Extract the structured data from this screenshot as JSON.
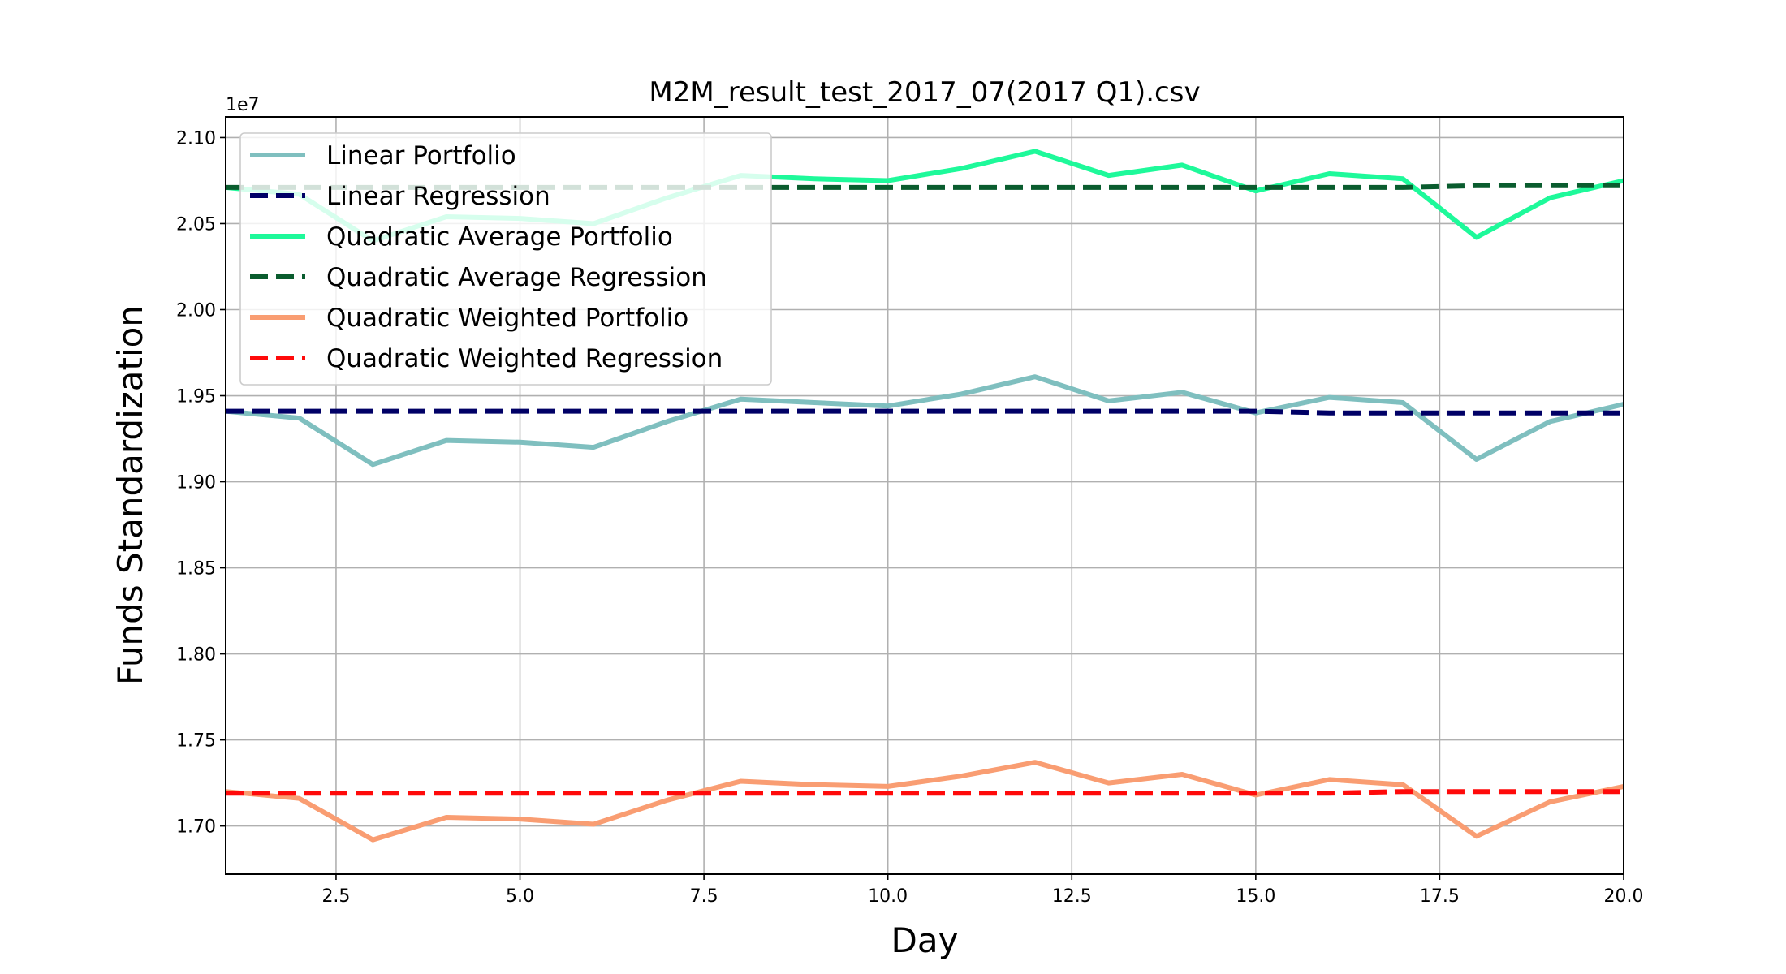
{
  "chart_data": {
    "type": "line",
    "title": "M2M_result_test_2017_07(2017 Q1).csv",
    "xlabel": "Day",
    "ylabel": "Funds Standardization",
    "y_offset_label": "1e7",
    "xlim": [
      1,
      20
    ],
    "ylim": [
      16.72,
      21.12
    ],
    "x_ticks": [
      2.5,
      5.0,
      7.5,
      10.0,
      12.5,
      15.0,
      17.5,
      20.0
    ],
    "x_tick_labels": [
      "2.5",
      "5.0",
      "7.5",
      "10.0",
      "12.5",
      "15.0",
      "17.5",
      "20.0"
    ],
    "y_ticks": [
      17.0,
      17.5,
      18.0,
      18.5,
      19.0,
      19.5,
      20.0,
      20.5,
      21.0
    ],
    "y_tick_labels": [
      "1.70",
      "1.75",
      "1.80",
      "1.85",
      "1.90",
      "1.95",
      "2.00",
      "2.05",
      "2.10"
    ],
    "grid": true,
    "legend_position": "top-left",
    "x": [
      1,
      2,
      3,
      4,
      5,
      6,
      7,
      8,
      9,
      10,
      11,
      12,
      13,
      14,
      15,
      16,
      17,
      18,
      19,
      20
    ],
    "series": [
      {
        "name": "Linear Portfolio",
        "style": "solid",
        "color": "#7fbfbf",
        "values": [
          19.41,
          19.37,
          19.1,
          19.24,
          19.23,
          19.2,
          19.35,
          19.48,
          19.46,
          19.44,
          19.51,
          19.61,
          19.47,
          19.52,
          19.4,
          19.49,
          19.46,
          19.13,
          19.35,
          19.45
        ]
      },
      {
        "name": "Linear Regression",
        "style": "dashed",
        "color": "#000066",
        "values": [
          19.41,
          19.41,
          19.41,
          19.41,
          19.41,
          19.41,
          19.41,
          19.41,
          19.41,
          19.41,
          19.41,
          19.41,
          19.41,
          19.41,
          19.41,
          19.4,
          19.4,
          19.4,
          19.4,
          19.4
        ]
      },
      {
        "name": "Quadratic Average Portfolio",
        "style": "solid",
        "color": "#1ef99a",
        "values": [
          20.71,
          20.67,
          20.4,
          20.54,
          20.53,
          20.5,
          20.65,
          20.78,
          20.76,
          20.75,
          20.82,
          20.92,
          20.78,
          20.84,
          20.69,
          20.79,
          20.76,
          20.42,
          20.65,
          20.75
        ]
      },
      {
        "name": "Quadratic Average Regression",
        "style": "dashed",
        "color": "#0a5c2e",
        "values": [
          20.71,
          20.71,
          20.71,
          20.71,
          20.71,
          20.71,
          20.71,
          20.71,
          20.71,
          20.71,
          20.71,
          20.71,
          20.71,
          20.71,
          20.71,
          20.71,
          20.71,
          20.72,
          20.72,
          20.72
        ]
      },
      {
        "name": "Quadratic Weighted Portfolio",
        "style": "solid",
        "color": "#f99d72",
        "values": [
          17.2,
          17.16,
          16.92,
          17.05,
          17.04,
          17.01,
          17.15,
          17.26,
          17.24,
          17.23,
          17.29,
          17.37,
          17.25,
          17.3,
          17.18,
          17.27,
          17.24,
          16.94,
          17.14,
          17.23
        ]
      },
      {
        "name": "Quadratic Weighted Regression",
        "style": "dashed",
        "color": "#ff0a0a",
        "values": [
          17.19,
          17.19,
          17.19,
          17.19,
          17.19,
          17.19,
          17.19,
          17.19,
          17.19,
          17.19,
          17.19,
          17.19,
          17.19,
          17.19,
          17.19,
          17.19,
          17.2,
          17.2,
          17.2,
          17.2
        ]
      }
    ]
  }
}
